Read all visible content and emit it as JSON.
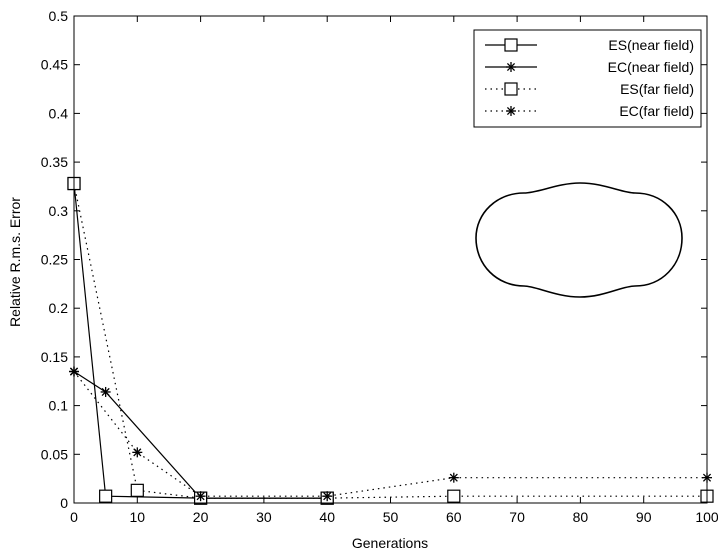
{
  "chart_data": {
    "type": "line",
    "title": "",
    "xlabel": "Generations",
    "ylabel": "Relative R.m.s.  Error",
    "xlim": [
      0,
      100
    ],
    "ylim": [
      0,
      0.5
    ],
    "xticks": [
      0,
      10,
      20,
      30,
      40,
      50,
      60,
      70,
      80,
      90,
      100
    ],
    "yticks": [
      0,
      0.05,
      0.1,
      0.15,
      0.2,
      0.25,
      0.3,
      0.35,
      0.4,
      0.45,
      0.5
    ],
    "xtick_labels": [
      "0",
      "10",
      "20",
      "30",
      "40",
      "50",
      "60",
      "70",
      "80",
      "90",
      "100"
    ],
    "ytick_labels": [
      "0",
      "0.05",
      "0.1",
      "0.15",
      "0.2",
      "0.25",
      "0.3",
      "0.35",
      "0.4",
      "0.45",
      "0.5"
    ],
    "grid": false,
    "legend_position": "top-right",
    "series": [
      {
        "name": "ES(near field)",
        "line": "solid",
        "marker": "square",
        "x": [
          0,
          5,
          20,
          40
        ],
        "y": [
          0.328,
          0.007,
          0.005,
          0.005
        ]
      },
      {
        "name": "EC(near field)",
        "line": "solid",
        "marker": "star",
        "x": [
          0,
          5,
          20,
          40
        ],
        "y": [
          0.135,
          0.114,
          0.005,
          0.005
        ]
      },
      {
        "name": "ES(far field)",
        "line": "dotted",
        "marker": "square",
        "x": [
          0,
          10,
          20,
          40,
          60,
          100
        ],
        "y": [
          0.328,
          0.013,
          0.005,
          0.005,
          0.007,
          0.007
        ]
      },
      {
        "name": "EC(far field)",
        "line": "dotted",
        "marker": "star",
        "x": [
          0,
          10,
          20,
          40,
          60,
          100
        ],
        "y": [
          0.135,
          0.052,
          0.007,
          0.007,
          0.026,
          0.026
        ]
      }
    ],
    "inset_shape": "peanut-contour"
  }
}
